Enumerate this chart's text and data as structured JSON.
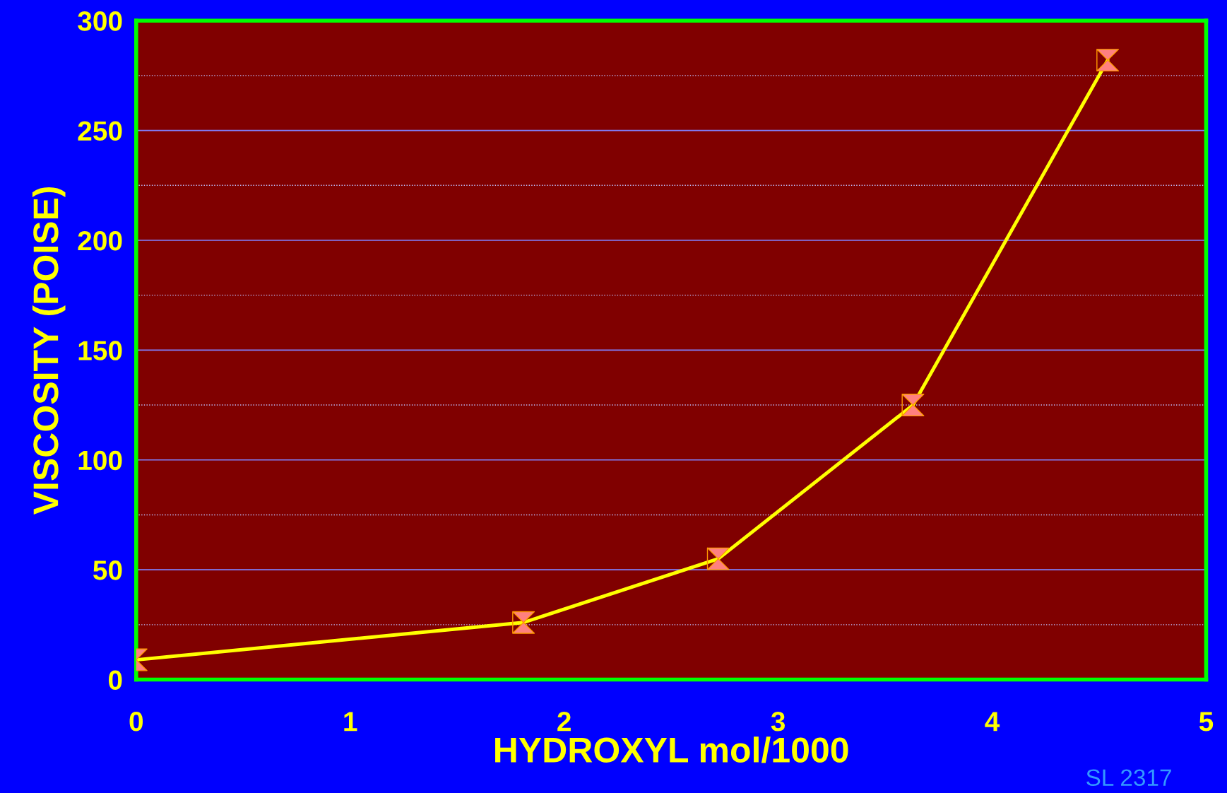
{
  "chart_data": {
    "type": "line",
    "xlabel": "HYDROXYL mol/1000",
    "ylabel": "VISCOSITY (POISE)",
    "x": [
      0,
      1.81,
      2.72,
      3.63,
      4.54
    ],
    "series": [
      {
        "color": "#ffff00",
        "values": [
          9,
          26,
          55,
          125,
          282
        ]
      }
    ],
    "xlim": [
      0,
      5
    ],
    "xticks": [
      0,
      1,
      2,
      3,
      4,
      5
    ],
    "ylim": [
      0,
      300
    ],
    "yticks": [
      0,
      {
        "value": 25,
        "label": null
      },
      50,
      {
        "value": 75,
        "label": null
      },
      100,
      {
        "value": 125,
        "label": null
      },
      150,
      {
        "value": 175,
        "label": null
      },
      200,
      {
        "value": 225,
        "label": null
      },
      250,
      {
        "value": 275,
        "label": null
      },
      300
    ],
    "grid": "y",
    "marker": "cross",
    "legend": false,
    "annotations": [
      "SL 2317"
    ]
  }
}
